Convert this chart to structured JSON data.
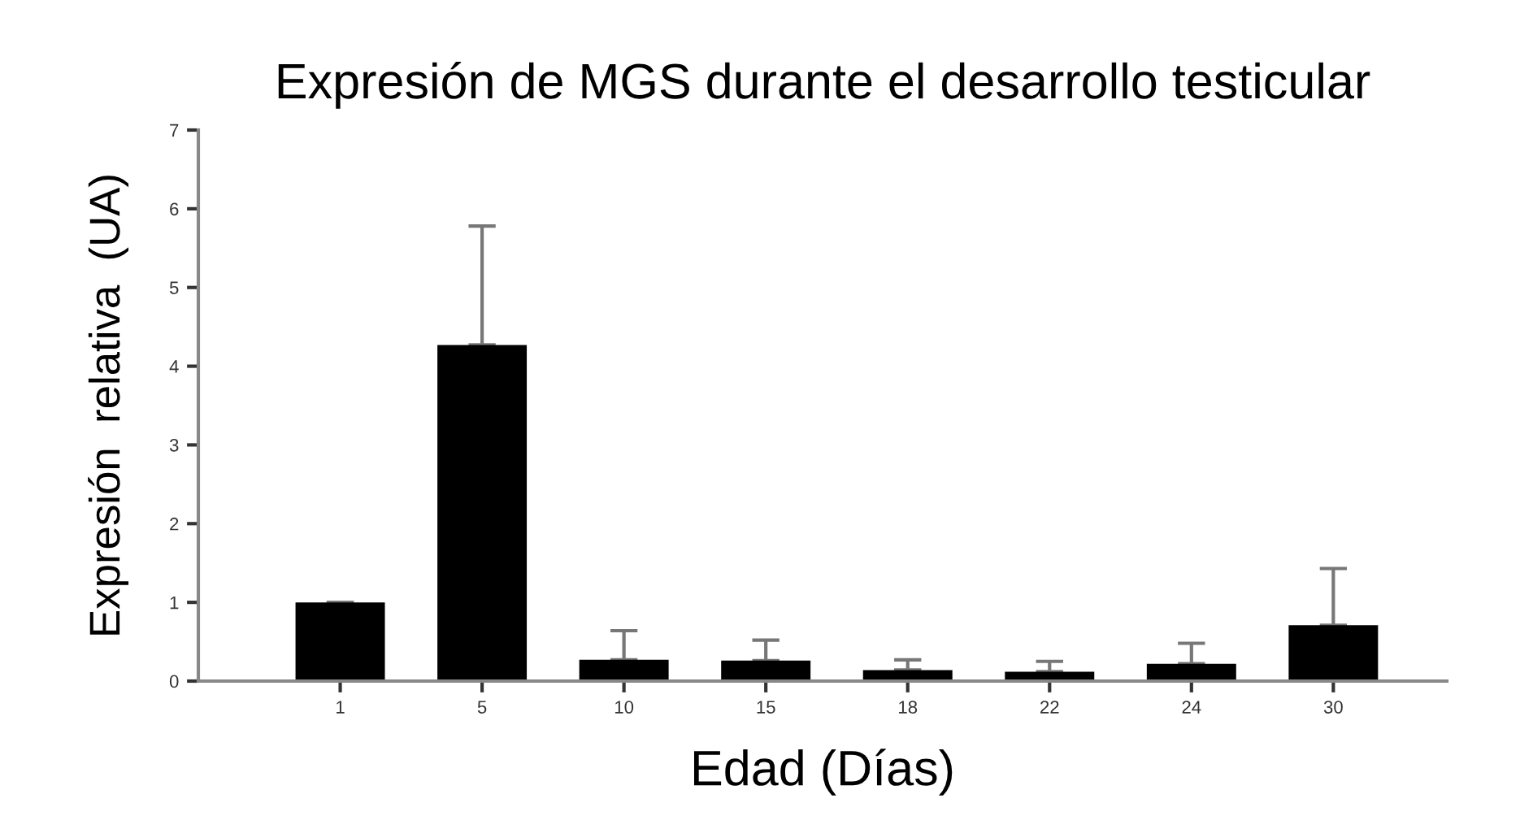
{
  "chart_data": {
    "type": "bar",
    "title": "Expresión de MGS durante el desarrollo testicular",
    "xlabel": "Edad (Días)",
    "ylabel": "Expresión  relativa  (UA)",
    "categories": [
      "1",
      "5",
      "10",
      "15",
      "18",
      "22",
      "24",
      "30"
    ],
    "values": [
      1.0,
      4.27,
      0.27,
      0.26,
      0.14,
      0.12,
      0.22,
      0.71
    ],
    "errors": [
      null,
      [
        4.27,
        5.78
      ],
      [
        0.27,
        0.64
      ],
      [
        0.26,
        0.52
      ],
      [
        0.14,
        0.27
      ],
      [
        0.12,
        0.25
      ],
      [
        0.22,
        0.48
      ],
      [
        0.71,
        1.43
      ]
    ],
    "color": "#000000",
    "ylim": [
      0,
      7
    ],
    "yticks": [
      0,
      1,
      2,
      3,
      4,
      5,
      6,
      7
    ],
    "grid": false,
    "legend": false
  }
}
